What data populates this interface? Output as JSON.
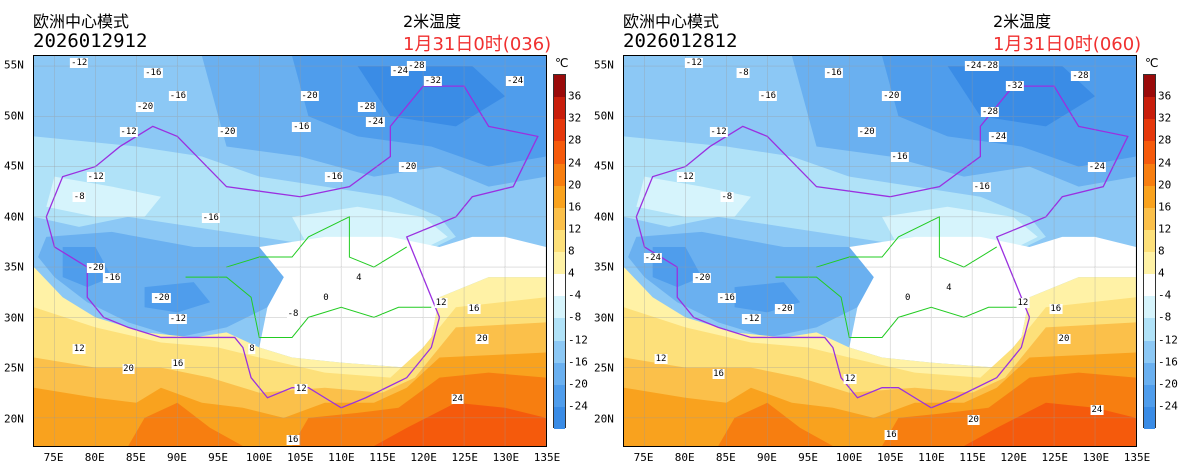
{
  "panels": [
    {
      "model": "欧洲中心模式",
      "init_time": "2026012912",
      "variable": "2米温度",
      "valid_time": "1月31日0时(036)",
      "contour_labels": [
        [
          "-12",
          78,
          55.3
        ],
        [
          "-16",
          87,
          54.3
        ],
        [
          "-24",
          117,
          54.5
        ],
        [
          "-28",
          119,
          55
        ],
        [
          "-32",
          121,
          53.5
        ],
        [
          "-24",
          131,
          53.5
        ],
        [
          "-20",
          106,
          52
        ],
        [
          "-16",
          90,
          52
        ],
        [
          "-20",
          86,
          51
        ],
        [
          "-28",
          113,
          51
        ],
        [
          "-24",
          114,
          49.5
        ],
        [
          "-20",
          96,
          48.5
        ],
        [
          "-16",
          105,
          49
        ],
        [
          "-12",
          84,
          48.5
        ],
        [
          "-20",
          118,
          45
        ],
        [
          "-16",
          109,
          44
        ],
        [
          "-12",
          80,
          44
        ],
        [
          "-8",
          78,
          42
        ],
        [
          "-16",
          94,
          40
        ],
        [
          "-20",
          80,
          35
        ],
        [
          "-16",
          82,
          34
        ],
        [
          "-20",
          88,
          32
        ],
        [
          "-12",
          90,
          30
        ],
        [
          "-8",
          104,
          30.5
        ],
        [
          "4",
          112,
          34
        ],
        [
          "0",
          108,
          32
        ],
        [
          "12",
          122,
          31.5
        ],
        [
          "16",
          126,
          31
        ],
        [
          "20",
          127,
          28
        ],
        [
          "12",
          78,
          27
        ],
        [
          "16",
          90,
          25.5
        ],
        [
          "20",
          84,
          25
        ],
        [
          "24",
          124,
          22
        ],
        [
          "12",
          105,
          23
        ],
        [
          "8",
          99,
          27
        ],
        [
          "16",
          104,
          18
        ]
      ]
    },
    {
      "model": "欧洲中心模式",
      "init_time": "2026012812",
      "variable": "2米温度",
      "valid_time": "1月31日0时(060)",
      "contour_labels": [
        [
          "-12",
          81,
          55.3
        ],
        [
          "-8",
          87,
          54.3
        ],
        [
          "-24",
          115,
          55
        ],
        [
          "-28",
          117,
          55
        ],
        [
          "-28",
          128,
          54
        ],
        [
          "-32",
          120,
          53
        ],
        [
          "-16",
          98,
          54.3
        ],
        [
          "-20",
          105,
          52
        ],
        [
          "-16",
          90,
          52
        ],
        [
          "-28",
          117,
          50.5
        ],
        [
          "-24",
          118,
          48
        ],
        [
          "-20",
          102,
          48.5
        ],
        [
          "-16",
          106,
          46
        ],
        [
          "-12",
          84,
          48.5
        ],
        [
          "-24",
          130,
          45
        ],
        [
          "-16",
          116,
          43
        ],
        [
          "-12",
          80,
          44
        ],
        [
          "-8",
          85,
          42
        ],
        [
          "-24",
          76,
          36
        ],
        [
          "-20",
          82,
          34
        ],
        [
          "-16",
          85,
          32
        ],
        [
          "-20",
          92,
          31
        ],
        [
          "-12",
          88,
          30
        ],
        [
          "4",
          112,
          33
        ],
        [
          "0",
          107,
          32
        ],
        [
          "12",
          121,
          31.5
        ],
        [
          "16",
          125,
          31
        ],
        [
          "20",
          126,
          28
        ],
        [
          "12",
          77,
          26
        ],
        [
          "16",
          84,
          24.5
        ],
        [
          "20",
          115,
          20
        ],
        [
          "24",
          130,
          21
        ],
        [
          "12",
          100,
          24
        ],
        [
          "16",
          105,
          18.5
        ]
      ]
    }
  ],
  "axes": {
    "lat_labels": [
      "55N",
      "50N",
      "45N",
      "40N",
      "35N",
      "30N",
      "25N",
      "20N"
    ],
    "lat_values": [
      55,
      50,
      45,
      40,
      35,
      30,
      25,
      20
    ],
    "lon_labels": [
      "75E",
      "80E",
      "85E",
      "90E",
      "95E",
      "100E",
      "105E",
      "110E",
      "115E",
      "120E",
      "125E",
      "130E",
      "135E"
    ],
    "lon_values": [
      75,
      80,
      85,
      90,
      95,
      100,
      105,
      110,
      115,
      120,
      125,
      130,
      135
    ]
  },
  "colorbar": {
    "unit": "℃",
    "ticks": [
      "36",
      "32",
      "28",
      "24",
      "20",
      "16",
      "12",
      "8",
      "4",
      "-4",
      "-8",
      "-12",
      "-16",
      "-20",
      "-24"
    ],
    "colors": [
      "#9a0a0a",
      "#c81e0c",
      "#e5380c",
      "#f55a0c",
      "#f77e10",
      "#f9a21e",
      "#fbc04a",
      "#fde07a",
      "#fff2a6",
      "#ffffff",
      "#d6f4fc",
      "#b0e2f8",
      "#8cc8f5",
      "#6ab0f0",
      "#4f9dec",
      "#3a8ce6"
    ]
  }
}
